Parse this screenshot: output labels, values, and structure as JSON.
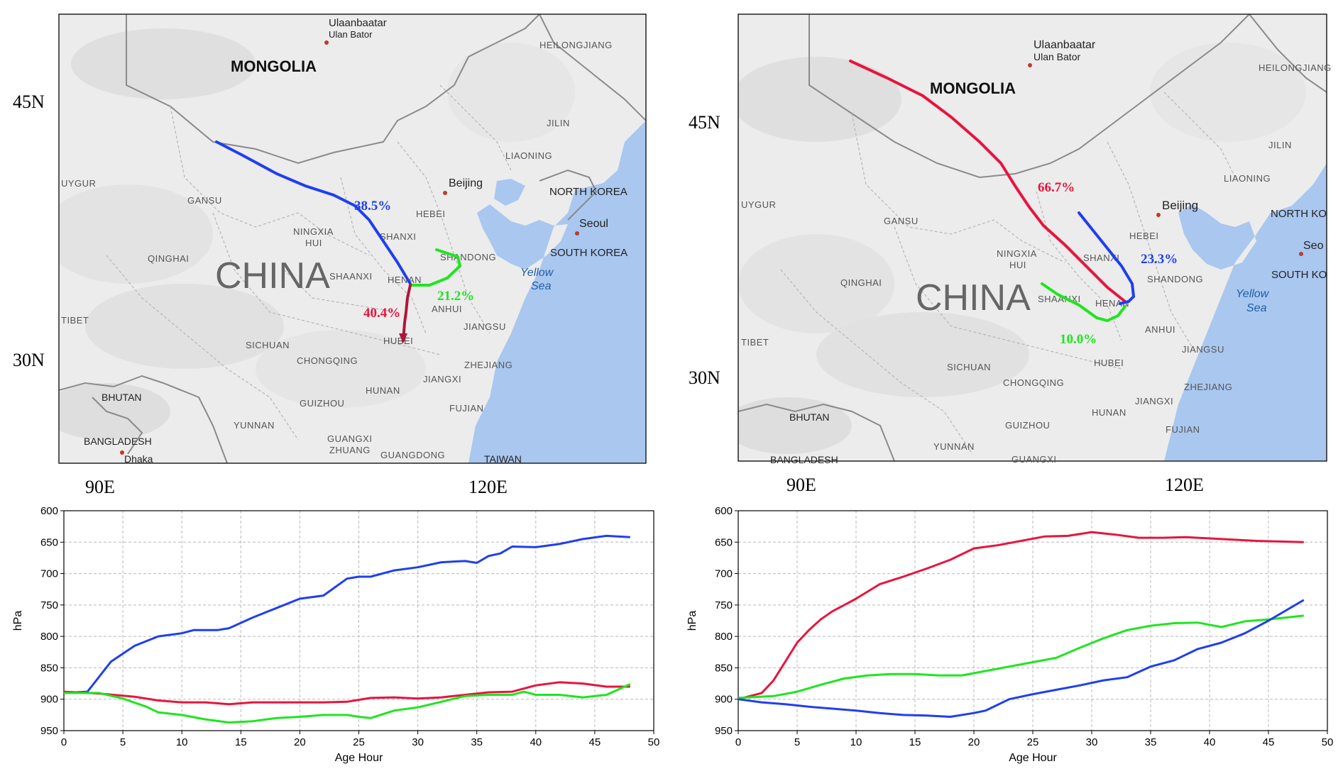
{
  "colors": {
    "red": "#e8143c",
    "blue": "#1f3ff0",
    "green": "#1ee61e",
    "land": "#ececec",
    "sea": "#a9c7ef"
  },
  "left_panel": {
    "map": {
      "lat_labels": [
        "45N",
        "30N"
      ],
      "lon_labels": [
        "90E",
        "120E"
      ],
      "countries": [
        "MONGOLIA",
        "CHINA",
        "NORTH KOREA",
        "SOUTH KOREA",
        "BHUTAN",
        "BANGLADESH",
        "TAIWAN"
      ],
      "cities": [
        "Ulaanbaatar",
        "Ulan Bator",
        "Beijing",
        "Seoul",
        "Dhaka"
      ],
      "provinces": [
        "HEILONGJIANG",
        "JILIN",
        "LIAONING",
        "UYGUR",
        "GANSU",
        "HEBEI",
        "NINGXIA",
        "HUI",
        "SHANXI",
        "QINGHAI",
        "SHANDONG",
        "SHAANXI",
        "HENAN",
        "ANHUI",
        "JIANGSU",
        "TIBET",
        "HUBEI",
        "SICHUAN",
        "CHONGQING",
        "ZHEJIANG",
        "JIANGXI",
        "HUNAN",
        "FUJIAN",
        "GUIZHOU",
        "YUNNAN",
        "GUANGXI",
        "ZHUANG",
        "GUANGDONG"
      ],
      "sea": [
        "Yellow",
        "Sea"
      ],
      "percentages": {
        "blue": "38.5%",
        "red": "40.4%",
        "green": "21.2%"
      }
    },
    "chart_data": {
      "type": "line",
      "xlabel": "Age Hour",
      "ylabel": "hPa",
      "xlim": [
        0,
        50
      ],
      "ylim": [
        950,
        600
      ],
      "y_inverted": true,
      "xticks": [
        0,
        5,
        10,
        15,
        20,
        25,
        30,
        35,
        40,
        45,
        50
      ],
      "yticks": [
        600,
        650,
        700,
        750,
        800,
        850,
        900,
        950
      ],
      "grid": true,
      "series": [
        {
          "color": "blue",
          "x": [
            0,
            2,
            4,
            6,
            8,
            10,
            11,
            13,
            14,
            16,
            18,
            20,
            22,
            24,
            25,
            26,
            28,
            30,
            32,
            34,
            35,
            36,
            37,
            38,
            40,
            42,
            44,
            46,
            48
          ],
          "values": [
            890,
            888,
            840,
            815,
            800,
            795,
            790,
            790,
            787,
            770,
            755,
            740,
            735,
            708,
            705,
            705,
            695,
            690,
            682,
            680,
            683,
            672,
            668,
            657,
            658,
            653,
            645,
            640,
            642
          ]
        },
        {
          "color": "red",
          "x": [
            0,
            3,
            6,
            8,
            10,
            12,
            14,
            16,
            18,
            20,
            22,
            24,
            26,
            28,
            30,
            32,
            34,
            36,
            38,
            40,
            42,
            44,
            46,
            48
          ],
          "values": [
            888,
            891,
            896,
            902,
            905,
            905,
            908,
            905,
            905,
            905,
            905,
            904,
            898,
            897,
            899,
            897,
            893,
            889,
            888,
            878,
            873,
            875,
            880,
            880
          ]
        },
        {
          "color": "green",
          "x": [
            0,
            3,
            5,
            7,
            8,
            10,
            12,
            14,
            16,
            18,
            20,
            22,
            24,
            25,
            26,
            28,
            30,
            32,
            34,
            36,
            38,
            39,
            40,
            42,
            44,
            46,
            48
          ],
          "values": [
            890,
            890,
            899,
            912,
            921,
            925,
            932,
            937,
            935,
            930,
            928,
            925,
            925,
            928,
            930,
            918,
            913,
            904,
            895,
            893,
            893,
            888,
            893,
            893,
            897,
            893,
            876
          ]
        }
      ]
    }
  },
  "right_panel": {
    "map": {
      "lat_labels": [
        "45N",
        "30N"
      ],
      "lon_labels": [
        "90E",
        "120E"
      ],
      "countries": [
        "MONGOLIA",
        "CHINA",
        "NORTH KO",
        "SOUTH KO",
        "BHUTAN",
        "BANGLADESH"
      ],
      "cities": [
        "Ulaanbaatar",
        "Ulan Bator",
        "Beijing",
        "Seo"
      ],
      "provinces": [
        "HEILONGJIANG",
        "JILIN",
        "LIAONING",
        "UYGUR",
        "GANSU",
        "HEBEI",
        "NINGXIA",
        "HUI",
        "SHANXI",
        "QINGHAI",
        "SHANDONG",
        "SHAANXI",
        "HENAN",
        "ANHUI",
        "TIBET",
        "HUBEI",
        "JIANGSU",
        "SICHUAN",
        "CHONGQING",
        "ZHEJIANG",
        "HUNAN",
        "JIANGXI",
        "FUJIAN",
        "GUIZHOU",
        "YUNNAN",
        "GUANGXI"
      ],
      "sea": [
        "Yellow",
        "Sea"
      ],
      "percentages": {
        "red": "66.7%",
        "blue": "23.3%",
        "green": "10.0%"
      }
    },
    "chart_data": {
      "type": "line",
      "xlabel": "Age Hour",
      "ylabel": "hPa",
      "xlim": [
        0,
        50
      ],
      "ylim": [
        950,
        600
      ],
      "y_inverted": true,
      "xticks": [
        0,
        5,
        10,
        15,
        20,
        25,
        30,
        35,
        40,
        45,
        50
      ],
      "yticks": [
        600,
        650,
        700,
        750,
        800,
        850,
        900,
        950
      ],
      "grid": true,
      "series": [
        {
          "color": "red",
          "x": [
            0,
            2,
            3,
            4,
            5,
            6,
            7,
            8,
            9,
            10,
            12,
            14,
            16,
            18,
            20,
            22,
            24,
            26,
            28,
            30,
            32,
            34,
            36,
            38,
            40,
            42,
            44,
            46,
            48
          ],
          "values": [
            900,
            890,
            870,
            840,
            810,
            790,
            773,
            760,
            750,
            740,
            717,
            705,
            692,
            678,
            660,
            655,
            648,
            641,
            640,
            634,
            638,
            643,
            643,
            642,
            644,
            646,
            648,
            649,
            650
          ]
        },
        {
          "color": "green",
          "x": [
            0,
            3,
            5,
            7,
            9,
            11,
            13,
            15,
            17,
            19,
            21,
            23,
            25,
            27,
            29,
            31,
            33,
            35,
            37,
            39,
            41,
            43,
            45,
            48
          ],
          "values": [
            898,
            895,
            888,
            877,
            867,
            862,
            860,
            860,
            862,
            862,
            855,
            848,
            841,
            834,
            818,
            803,
            790,
            783,
            779,
            778,
            785,
            776,
            773,
            767
          ]
        },
        {
          "color": "blue",
          "x": [
            0,
            2,
            4,
            6,
            8,
            10,
            12,
            14,
            16,
            18,
            20,
            21,
            23,
            25,
            27,
            29,
            31,
            33,
            35,
            37,
            39,
            41,
            43,
            45,
            48
          ],
          "values": [
            900,
            905,
            908,
            912,
            915,
            918,
            922,
            925,
            926,
            928,
            922,
            918,
            900,
            892,
            885,
            878,
            870,
            865,
            848,
            838,
            820,
            810,
            795,
            775,
            742
          ]
        }
      ]
    }
  }
}
